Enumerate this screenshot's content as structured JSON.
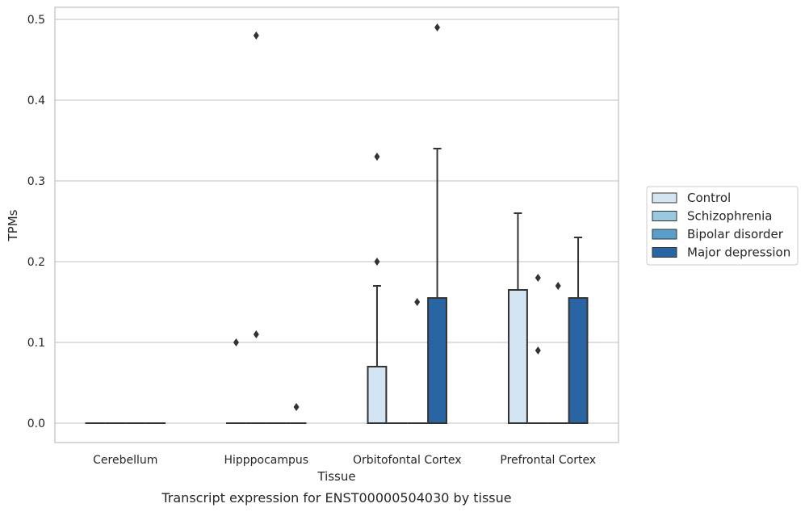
{
  "chart_data": {
    "type": "boxplot",
    "xlabel": "Tissue",
    "ylabel": "TPMs",
    "caption": "Transcript expression for ENST00000504030 by tissue",
    "ylim": [
      -0.024,
      0.515
    ],
    "yticks": [
      0.0,
      0.1,
      0.2,
      0.3,
      0.4,
      0.5
    ],
    "ytick_labels": [
      "0.0",
      "0.1",
      "0.2",
      "0.3",
      "0.4",
      "0.5"
    ],
    "grid": "horizontal",
    "legend_position": "right",
    "categories": [
      "Cerebellum",
      "Hipppocampus",
      "Orbitofontal Cortex",
      "Prefrontal Cortex"
    ],
    "series": [
      {
        "name": "Control",
        "color": "#d3e4f3",
        "boxes": [
          {
            "q1": 0,
            "median": 0,
            "q3": 0,
            "whisker_low": 0,
            "whisker_high": 0,
            "outliers": []
          },
          {
            "q1": 0,
            "median": 0,
            "q3": 0,
            "whisker_low": 0,
            "whisker_high": 0,
            "outliers": [
              0.1
            ]
          },
          {
            "q1": 0,
            "median": 0,
            "q3": 0.07,
            "whisker_low": 0,
            "whisker_high": 0.17,
            "outliers": [
              0.2,
              0.33
            ]
          },
          {
            "q1": 0,
            "median": 0,
            "q3": 0.165,
            "whisker_low": 0,
            "whisker_high": 0.26,
            "outliers": []
          }
        ]
      },
      {
        "name": "Schizophrenia",
        "color": "#9ac8e0",
        "boxes": [
          {
            "q1": 0,
            "median": 0,
            "q3": 0,
            "whisker_low": 0,
            "whisker_high": 0,
            "outliers": []
          },
          {
            "q1": 0,
            "median": 0,
            "q3": 0,
            "whisker_low": 0,
            "whisker_high": 0,
            "outliers": [
              0.11,
              0.48
            ]
          },
          {
            "q1": 0,
            "median": 0,
            "q3": 0,
            "whisker_low": 0,
            "whisker_high": 0,
            "outliers": []
          },
          {
            "q1": 0,
            "median": 0,
            "q3": 0,
            "whisker_low": 0,
            "whisker_high": 0,
            "outliers": [
              0.09,
              0.18
            ]
          }
        ]
      },
      {
        "name": "Bipolar disorder",
        "color": "#5a9fcc",
        "boxes": [
          {
            "q1": 0,
            "median": 0,
            "q3": 0,
            "whisker_low": 0,
            "whisker_high": 0,
            "outliers": []
          },
          {
            "q1": 0,
            "median": 0,
            "q3": 0,
            "whisker_low": 0,
            "whisker_high": 0,
            "outliers": []
          },
          {
            "q1": 0,
            "median": 0,
            "q3": 0,
            "whisker_low": 0,
            "whisker_high": 0,
            "outliers": [
              0.15
            ]
          },
          {
            "q1": 0,
            "median": 0,
            "q3": 0,
            "whisker_low": 0,
            "whisker_high": 0,
            "outliers": [
              0.17
            ]
          }
        ]
      },
      {
        "name": "Major depression",
        "color": "#2964a3",
        "boxes": [
          {
            "q1": 0,
            "median": 0,
            "q3": 0,
            "whisker_low": 0,
            "whisker_high": 0,
            "outliers": []
          },
          {
            "q1": 0,
            "median": 0,
            "q3": 0,
            "whisker_low": 0,
            "whisker_high": 0,
            "outliers": [
              0.02
            ]
          },
          {
            "q1": 0,
            "median": 0,
            "q3": 0.155,
            "whisker_low": 0,
            "whisker_high": 0.34,
            "outliers": [
              0.49
            ]
          },
          {
            "q1": 0,
            "median": 0,
            "q3": 0.155,
            "whisker_low": 0,
            "whisker_high": 0.23,
            "outliers": []
          }
        ]
      }
    ],
    "style": {
      "line_color": "#333333",
      "grid_color": "#cccccc",
      "frame_color": "#cccccc"
    }
  }
}
